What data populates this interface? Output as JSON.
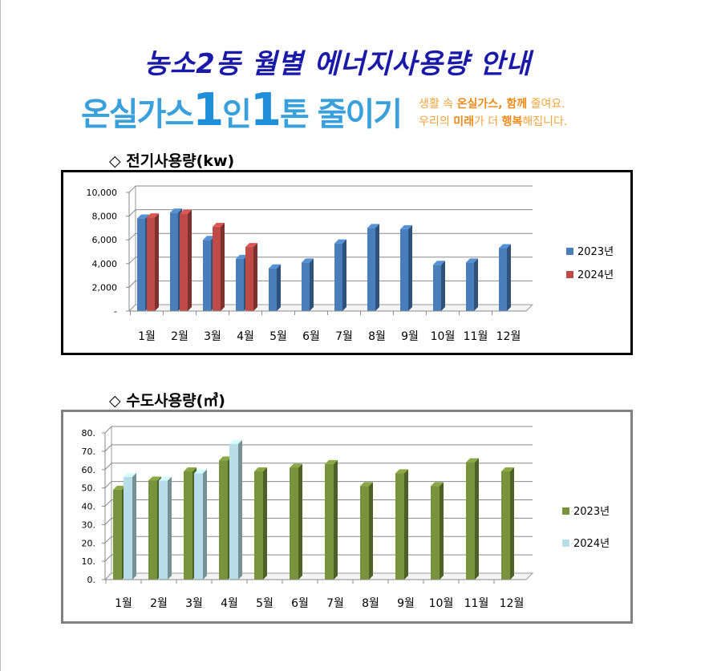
{
  "title": "농소2동 월별 에너지사용량 안내",
  "banner": {
    "main_1": "온실가스",
    "one_1": "1",
    "main_2": "인",
    "one_2": "1",
    "main_3": "톤 줄이기",
    "sub_line1_a": "생활 속 ",
    "sub_line1_b": "온실가스, 함께",
    "sub_line1_c": " 줄여요.",
    "sub_line2_a": "우리의 ",
    "sub_line2_b": "미래",
    "sub_line2_c": "가 더 ",
    "sub_line2_d": "행복",
    "sub_line2_e": "해집니다."
  },
  "chart_data": [
    {
      "type": "bar",
      "title": "◇ 전기사용량(kw)",
      "categories": [
        "1월",
        "2월",
        "3월",
        "4월",
        "5월",
        "6월",
        "7월",
        "8월",
        "9월",
        "10월",
        "11월",
        "12월"
      ],
      "series": [
        {
          "name": "2023년",
          "color": "#4a7ebb",
          "values": [
            7800,
            8300,
            6000,
            4400,
            3600,
            4100,
            5700,
            7000,
            6900,
            3900,
            4100,
            5300
          ]
        },
        {
          "name": "2024년",
          "color": "#be4b48",
          "values": [
            7900,
            8200,
            7100,
            5400,
            null,
            null,
            null,
            null,
            null,
            null,
            null,
            null
          ]
        }
      ],
      "yticks": [
        "-",
        "2,000",
        "4,000",
        "6,000",
        "8,000",
        "10,000"
      ],
      "ylim": [
        0,
        10000
      ],
      "grid": true,
      "legend": "right"
    },
    {
      "type": "bar",
      "title": "◇ 수도사용량(㎥)",
      "categories": [
        "1월",
        "2월",
        "3월",
        "4월",
        "5월",
        "6월",
        "7월",
        "8월",
        "9월",
        "10월",
        "11월",
        "12월"
      ],
      "series": [
        {
          "name": "2023년",
          "color": "#77933c",
          "values": [
            49,
            54,
            59,
            65,
            59,
            61,
            63,
            51,
            58,
            51,
            64,
            59
          ]
        },
        {
          "name": "2024년",
          "color": "#b7dee8",
          "values": [
            56,
            54,
            58,
            74,
            null,
            null,
            null,
            null,
            null,
            null,
            null,
            null
          ]
        }
      ],
      "yticks": [
        "0.",
        "10.",
        "20.",
        "30.",
        "40.",
        "50.",
        "60.",
        "70.",
        "80."
      ],
      "ylim": [
        0,
        80
      ],
      "grid": true,
      "legend": "right"
    }
  ]
}
